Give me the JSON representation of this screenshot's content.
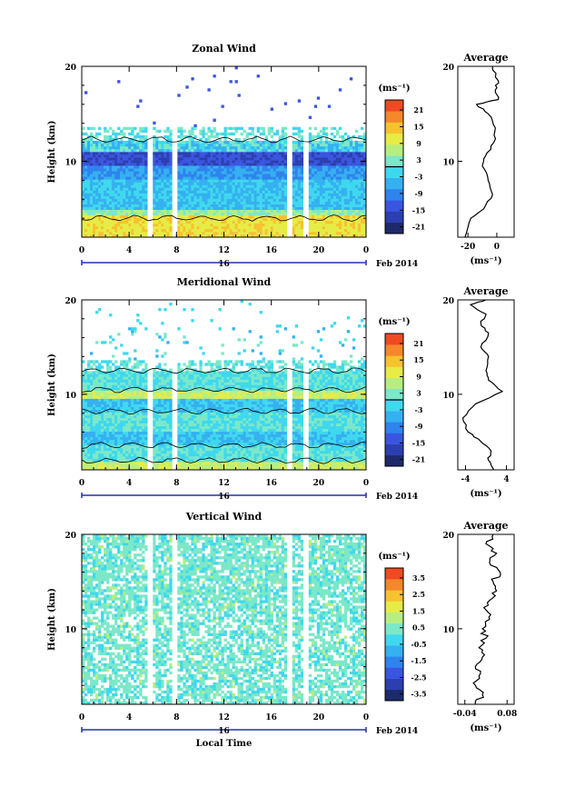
{
  "colors": {
    "scale": [
      "#1d2a6b",
      "#2c3fb0",
      "#3a55e0",
      "#2f83ee",
      "#35b0f0",
      "#3fd8ee",
      "#7be8c8",
      "#b7ee80",
      "#e6ec45",
      "#f7c230",
      "#f5882a",
      "#f04a22"
    ],
    "background": "#ffffff",
    "axis": "#000000",
    "date_axis": "#2233aa"
  },
  "common": {
    "x_ticks": [
      "0",
      "4",
      "8",
      "12",
      "16",
      "20",
      "0"
    ],
    "date_label": "16",
    "date_axis_right": "Feb 2014",
    "y_label": "Height (km)",
    "y_ticks": [
      "20",
      "10"
    ],
    "x_title": "Local Time",
    "avg_title": "Average",
    "unit": "(ms⁻¹)"
  },
  "chart_data": [
    {
      "type": "heatmap",
      "title": "Zonal Wind",
      "xlabel": "",
      "ylabel": "Height (km)",
      "xlim": [
        0,
        24
      ],
      "ylim": [
        2,
        20
      ],
      "colorbar": {
        "unit": "(ms⁻¹)",
        "ticks": [
          "21",
          "15",
          "9",
          "3",
          "-3",
          "-9",
          "-15",
          "-21"
        ],
        "contour_at": "0"
      },
      "data_gaps_hours": [
        [
          5.6,
          6.0
        ],
        [
          7.6,
          8.1
        ],
        [
          17.3,
          17.7
        ],
        [
          18.7,
          19.1
        ]
      ],
      "profile": {
        "title": "Average",
        "xlabel": "(ms⁻¹)",
        "x_ticks": [
          "-20",
          "0"
        ],
        "y_ticks": [
          "20",
          "10"
        ],
        "xlim": [
          -27,
          12
        ],
        "points": [
          [
            -22,
            2.0
          ],
          [
            -18,
            4
          ],
          [
            -9,
            5
          ],
          [
            -3,
            6.5
          ],
          [
            -6,
            8
          ],
          [
            -10,
            9.5
          ],
          [
            -8,
            10.5
          ],
          [
            -2,
            12
          ],
          [
            -1,
            13.5
          ],
          [
            -6,
            15
          ],
          [
            -14,
            16
          ],
          [
            1,
            16.5
          ],
          [
            -1,
            17.5
          ],
          [
            1,
            18.5
          ],
          [
            -3,
            20
          ]
        ]
      }
    },
    {
      "type": "heatmap",
      "title": "Meridional Wind",
      "xlabel": "",
      "ylabel": "Height (km)",
      "xlim": [
        0,
        24
      ],
      "ylim": [
        2,
        20
      ],
      "colorbar": {
        "unit": "(ms⁻¹)",
        "ticks": [
          "21",
          "15",
          "9",
          "3",
          "-3",
          "-9",
          "-15",
          "-21"
        ],
        "contour_at": "0"
      },
      "data_gaps_hours": [
        [
          5.6,
          6.0
        ],
        [
          7.6,
          8.1
        ],
        [
          17.3,
          17.7
        ],
        [
          18.7,
          19.1
        ]
      ],
      "profile": {
        "title": "Average",
        "xlabel": "(ms⁻¹)",
        "x_ticks": [
          "-4",
          "4"
        ],
        "y_ticks": [
          "20",
          "10"
        ],
        "xlim": [
          -5.5,
          5.5
        ],
        "points": [
          [
            1.5,
            2
          ],
          [
            0.5,
            3
          ],
          [
            1,
            4
          ],
          [
            -1,
            5
          ],
          [
            -3.5,
            6
          ],
          [
            -4.5,
            7.5
          ],
          [
            -2,
            9
          ],
          [
            3.2,
            10.3
          ],
          [
            0.5,
            11.5
          ],
          [
            0,
            12.5
          ],
          [
            0.5,
            14
          ],
          [
            -1,
            15
          ],
          [
            0.5,
            16.5
          ],
          [
            -1,
            17.5
          ],
          [
            0,
            18.5
          ],
          [
            -3,
            19.5
          ],
          [
            0,
            20
          ]
        ]
      }
    },
    {
      "type": "heatmap",
      "title": "Vertical Wind",
      "xlabel": "Local Time",
      "ylabel": "Height (km)",
      "xlim": [
        0,
        24
      ],
      "ylim": [
        2,
        20
      ],
      "colorbar": {
        "unit": "(ms⁻¹)",
        "ticks": [
          "3.5",
          "2.5",
          "1.5",
          "0.5",
          "-0.5",
          "-1.5",
          "-2.5",
          "-3.5"
        ]
      },
      "data_gaps_hours": [
        [
          5.6,
          6.0
        ],
        [
          7.6,
          8.1
        ],
        [
          17.3,
          17.7
        ],
        [
          18.7,
          19.1
        ]
      ],
      "profile": {
        "title": "Average",
        "xlabel": "(ms⁻¹)",
        "x_ticks": [
          "-0.04",
          "0.08"
        ],
        "y_ticks": [
          "20",
          "10"
        ],
        "xlim": [
          -0.06,
          0.1
        ],
        "points": [
          [
            -0.01,
            2
          ],
          [
            0.01,
            3
          ],
          [
            -0.01,
            4
          ],
          [
            0.0,
            5
          ],
          [
            -0.01,
            6
          ],
          [
            0.01,
            7
          ],
          [
            0.0,
            8
          ],
          [
            0.02,
            9
          ],
          [
            0.01,
            10
          ],
          [
            0.03,
            11
          ],
          [
            0.02,
            12
          ],
          [
            0.03,
            13
          ],
          [
            0.05,
            14
          ],
          [
            0.04,
            15
          ],
          [
            0.06,
            16
          ],
          [
            0.03,
            17
          ],
          [
            0.05,
            18
          ],
          [
            0.02,
            19
          ],
          [
            0.04,
            20
          ]
        ]
      }
    }
  ]
}
